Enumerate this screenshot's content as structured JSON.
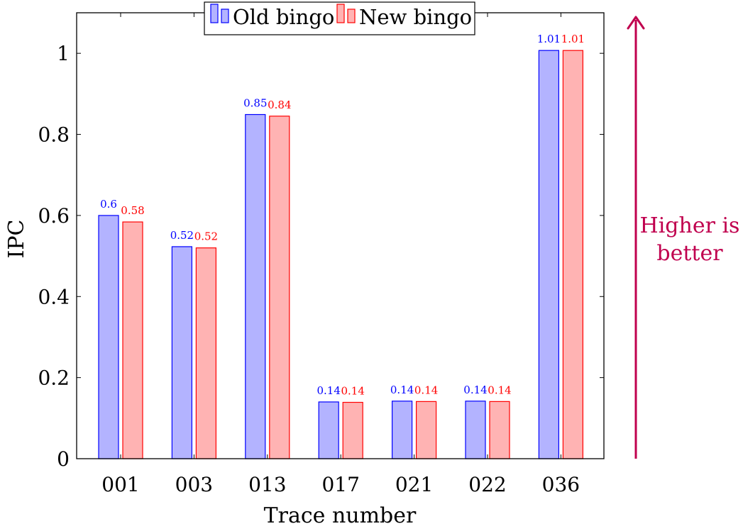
{
  "chart_data": {
    "type": "bar",
    "categories": [
      "001",
      "003",
      "013",
      "017",
      "021",
      "022",
      "036"
    ],
    "series": [
      {
        "name": "Old bingo",
        "values": [
          0.6,
          0.523,
          0.849,
          0.14,
          0.142,
          0.142,
          1.007
        ],
        "labels": [
          "0.6",
          "0.52",
          "0.85",
          "0.14",
          "0.14",
          "0.14",
          "1.01"
        ],
        "fill": "#b3b3ff",
        "stroke": "#0000ff",
        "label_color": "#0000ff"
      },
      {
        "name": "New bingo",
        "values": [
          0.584,
          0.52,
          0.845,
          0.139,
          0.141,
          0.141,
          1.007
        ],
        "labels": [
          "0.58",
          "0.52",
          "0.84",
          "0.14",
          "0.14",
          "0.14",
          "1.01"
        ],
        "fill": "#ffb3b3",
        "stroke": "#ff0000",
        "label_color": "#ff0000"
      }
    ],
    "xlabel": "Trace number",
    "ylabel": "IPC",
    "ylim": [
      0,
      1.1
    ],
    "yticks": [
      0,
      0.2,
      0.4,
      0.6,
      0.8,
      1
    ],
    "ytick_labels": [
      "0",
      "0.2",
      "0.4",
      "0.6",
      "0.8",
      "1"
    ],
    "grid": false,
    "legend_position": "top-center"
  },
  "annotation": {
    "line1": "Higher is",
    "line2": "better",
    "color": "#c0004e"
  }
}
